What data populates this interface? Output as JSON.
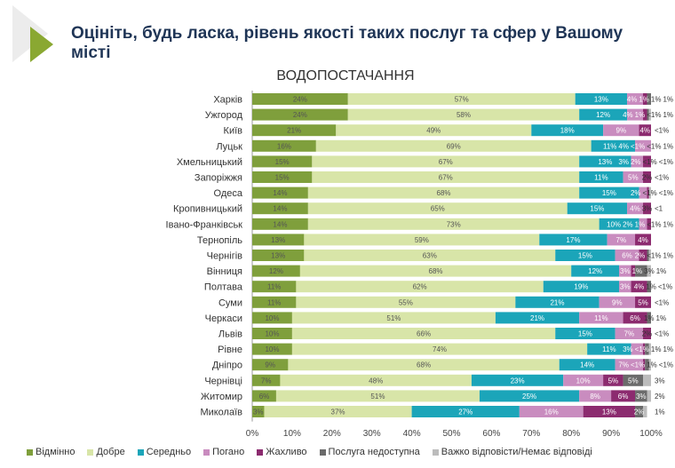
{
  "header": {
    "title": "Оцініть, будь ласка, рівень якості таких послуг та сфер у Вашому місті"
  },
  "chart_data": {
    "type": "bar",
    "stacked": true,
    "orientation": "horizontal",
    "title": "ВОДОПОСТАЧАННЯ",
    "xlim": [
      0,
      100
    ],
    "x_ticks": [
      "0%",
      "10%",
      "20%",
      "30%",
      "40%",
      "50%",
      "60%",
      "70%",
      "80%",
      "90%",
      "100%"
    ],
    "legend_position": "bottom",
    "series": [
      {
        "name": "Відмінно",
        "color": "#7f9f3c"
      },
      {
        "name": "Добре",
        "color": "#d8e5a8"
      },
      {
        "name": "Середньо",
        "color": "#1ba5b9"
      },
      {
        "name": "Погано",
        "color": "#c98cbf"
      },
      {
        "name": "Жахливо",
        "color": "#8c2b6f"
      },
      {
        "name": "Послуга недоступна",
        "color": "#6b6b6b"
      },
      {
        "name": "Важко відповісти/Немає відповіді",
        "color": "#bcbcbc"
      }
    ],
    "categories": [
      "Харків",
      "Ужгород",
      "Київ",
      "Луцьк",
      "Хмельницький",
      "Запоріжжя",
      "Одеса",
      "Кропивницький",
      "Івано-Франківськ",
      "Тернопіль",
      "Чернігів",
      "Вінниця",
      "Полтава",
      "Суми",
      "Черкаси",
      "Львів",
      "Рівне",
      "Дніпро",
      "Чернівці",
      "Житомир",
      "Миколаїв"
    ],
    "values": [
      [
        24,
        57,
        13,
        4,
        1,
        1,
        1
      ],
      [
        24,
        58,
        12,
        4,
        1,
        0.5,
        1
      ],
      [
        21,
        49,
        18,
        9,
        4,
        0,
        0.5
      ],
      [
        16,
        69,
        11,
        4,
        0.5,
        0.5,
        1
      ],
      [
        15,
        67,
        13,
        3,
        2,
        0.5,
        0.5
      ],
      [
        15,
        67,
        11,
        5,
        2,
        0,
        0.5
      ],
      [
        14,
        68,
        15,
        2,
        0.5,
        0,
        0.5
      ],
      [
        14,
        65,
        15,
        4,
        3,
        0,
        0.5
      ],
      [
        14,
        73,
        10,
        2,
        1,
        0.5,
        1
      ],
      [
        13,
        59,
        17,
        7,
        4,
        0,
        0
      ],
      [
        13,
        63,
        15,
        6,
        2,
        0.5,
        1
      ],
      [
        12,
        68,
        12,
        3,
        1,
        3,
        1
      ],
      [
        11,
        62,
        19,
        3,
        4,
        1,
        0.5
      ],
      [
        11,
        55,
        21,
        9,
        5,
        0,
        0.5
      ],
      [
        10,
        51,
        21,
        11,
        6,
        1,
        1
      ],
      [
        10,
        66,
        15,
        7,
        2,
        0,
        0.5
      ],
      [
        10,
        74,
        11,
        3,
        0.5,
        1,
        1
      ],
      [
        9,
        68,
        14,
        7,
        0.5,
        1,
        0.5
      ],
      [
        7,
        48,
        23,
        10,
        5,
        5,
        3
      ],
      [
        6,
        51,
        25,
        8,
        6,
        3,
        2
      ],
      [
        3,
        37,
        27,
        16,
        13,
        2,
        1
      ]
    ],
    "labels": [
      [
        "24%",
        "57%",
        "13%",
        "4%",
        "1%",
        "1%",
        "1%"
      ],
      [
        "24%",
        "58%",
        "12%",
        "4%",
        "1%",
        "<1%",
        "1%"
      ],
      [
        "21%",
        "49%",
        "18%",
        "9%",
        "4%",
        "",
        "<1%"
      ],
      [
        "16%",
        "69%",
        "11%",
        "4%",
        "<1%",
        "<1%",
        "1%"
      ],
      [
        "15%",
        "67%",
        "13%",
        "3%",
        "2%",
        "<1%",
        "<1%"
      ],
      [
        "15%",
        "67%",
        "11%",
        "5%",
        "2%",
        "",
        "<1%"
      ],
      [
        "14%",
        "68%",
        "15%",
        "2%",
        "<1%",
        "",
        "<1%"
      ],
      [
        "14%",
        "65%",
        "15%",
        "4%",
        "3%",
        "",
        "<1"
      ],
      [
        "14%",
        "73%",
        "10%",
        "2%",
        "1%",
        "<1%",
        "1%"
      ],
      [
        "13%",
        "59%",
        "17%",
        "7%",
        "4%",
        "",
        ""
      ],
      [
        "13%",
        "63%",
        "15%",
        "6%",
        "2%",
        "<1%",
        "1%"
      ],
      [
        "12%",
        "68%",
        "12%",
        "3%",
        "1%",
        "3%",
        "1%"
      ],
      [
        "11%",
        "62%",
        "19%",
        "3%",
        "4%",
        "1%",
        "<1%"
      ],
      [
        "11%",
        "55%",
        "21%",
        "9%",
        "5%",
        "",
        "<1%"
      ],
      [
        "10%",
        "51%",
        "21%",
        "11%",
        "6%",
        "1%",
        "1%"
      ],
      [
        "10%",
        "66%",
        "15%",
        "7%",
        "2%",
        "",
        "<1%"
      ],
      [
        "10%",
        "74%",
        "11%",
        "3%",
        "<1%",
        "1%",
        "1%"
      ],
      [
        "9%",
        "68%",
        "14%",
        "7%",
        "<1%",
        "1%",
        "<1%"
      ],
      [
        "7%",
        "48%",
        "23%",
        "10%",
        "5%",
        "5%",
        "3%"
      ],
      [
        "6%",
        "51%",
        "25%",
        "8%",
        "6%",
        "3%",
        "2%"
      ],
      [
        "3%",
        "37%",
        "27%",
        "16%",
        "13%",
        "2%",
        "1%"
      ]
    ]
  }
}
